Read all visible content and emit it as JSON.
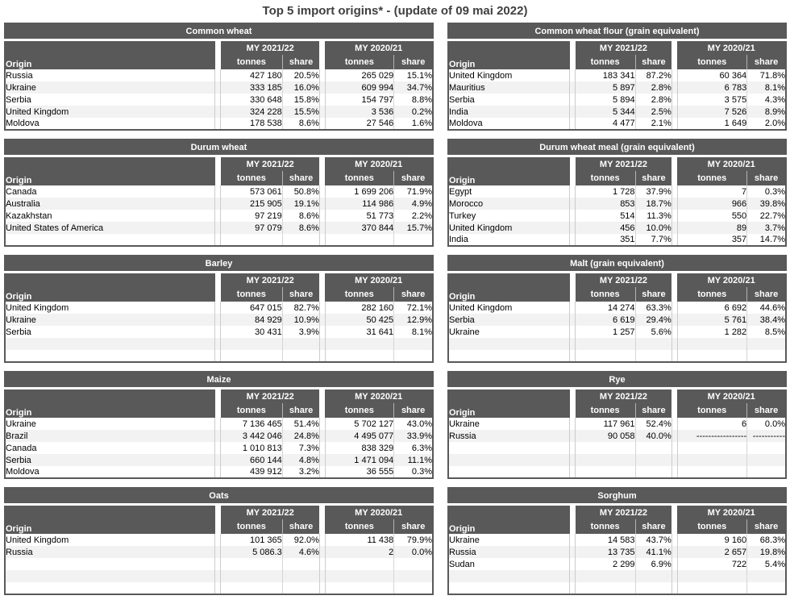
{
  "title": "Top 5 import origins* - (update of 09 mai 2022)",
  "header_labels": {
    "origin": "Origin",
    "my1": "MY 2021/22",
    "my2": "MY 2020/21",
    "tonnes": "tonnes",
    "share": "share"
  },
  "colors": {
    "header_bg": "#595959",
    "stripe": "#f2f2f2",
    "separator_line": "#cccccc",
    "title_text": "#404040"
  },
  "tables": [
    {
      "title": "Common wheat",
      "side": "left",
      "rows": [
        [
          "Russia",
          "427 180",
          "20.5%",
          "265 029",
          "15.1%"
        ],
        [
          "Ukraine",
          "333 185",
          "16.0%",
          "609 994",
          "34.7%"
        ],
        [
          "Serbia",
          "330 648",
          "15.8%",
          "154 797",
          "8.8%"
        ],
        [
          "United Kingdom",
          "324 228",
          "15.5%",
          "3 536",
          "0.2%"
        ],
        [
          "Moldova",
          "178 538",
          "8.6%",
          "27 546",
          "1.6%"
        ]
      ]
    },
    {
      "title": "Common wheat flour (grain equivalent)",
      "side": "right",
      "rows": [
        [
          "United Kingdom",
          "183 341",
          "87.2%",
          "60 364",
          "71.8%"
        ],
        [
          "Mauritius",
          "5 897",
          "2.8%",
          "6 783",
          "8.1%"
        ],
        [
          "Serbia",
          "5 894",
          "2.8%",
          "3 575",
          "4.3%"
        ],
        [
          "India",
          "5 344",
          "2.5%",
          "7 526",
          "8.9%"
        ],
        [
          "Moldova",
          "4 477",
          "2.1%",
          "1 649",
          "2.0%"
        ]
      ]
    },
    {
      "title": "Durum wheat",
      "side": "left",
      "rows": [
        [
          "Canada",
          "573 061",
          "50.8%",
          "1 699 206",
          "71.9%"
        ],
        [
          "Australia",
          "215 905",
          "19.1%",
          "114 986",
          "4.9%"
        ],
        [
          "Kazakhstan",
          "97 219",
          "8.6%",
          "51 773",
          "2.2%"
        ],
        [
          "United States of America",
          "97 079",
          "8.6%",
          "370 844",
          "15.7%"
        ]
      ]
    },
    {
      "title": "Durum wheat meal (grain equivalent)",
      "side": "right",
      "rows": [
        [
          "Egypt",
          "1 728",
          "37.9%",
          "7",
          "0.3%"
        ],
        [
          "Morocco",
          "853",
          "18.7%",
          "966",
          "39.8%"
        ],
        [
          "Turkey",
          "514",
          "11.3%",
          "550",
          "22.7%"
        ],
        [
          "United Kingdom",
          "456",
          "10.0%",
          "89",
          "3.7%"
        ],
        [
          "India",
          "351",
          "7.7%",
          "357",
          "14.7%"
        ]
      ]
    },
    {
      "title": "Barley",
      "side": "left",
      "rows": [
        [
          "United Kingdom",
          "647 015",
          "82.7%",
          "282 160",
          "72.1%"
        ],
        [
          "Ukraine",
          "84 929",
          "10.9%",
          "50 425",
          "12.9%"
        ],
        [
          "Serbia",
          "30 431",
          "3.9%",
          "31 641",
          "8.1%"
        ]
      ]
    },
    {
      "title": "Malt (grain equivalent)",
      "side": "right",
      "rows": [
        [
          "United Kingdom",
          "14 274",
          "63.3%",
          "6 692",
          "44.6%"
        ],
        [
          "Serbia",
          "6 619",
          "29.4%",
          "5 761",
          "38.4%"
        ],
        [
          "Ukraine",
          "1 257",
          "5.6%",
          "1 282",
          "8.5%"
        ]
      ]
    },
    {
      "title": "Maize",
      "side": "left",
      "rows": [
        [
          "Ukraine",
          "7 136 465",
          "51.4%",
          "5 702 127",
          "43.0%"
        ],
        [
          "Brazil",
          "3 442 046",
          "24.8%",
          "4 495 077",
          "33.9%"
        ],
        [
          "Canada",
          "1 010 813",
          "7.3%",
          "838 329",
          "6.3%"
        ],
        [
          "Serbia",
          "660 144",
          "4.8%",
          "1 471 094",
          "11.1%"
        ],
        [
          "Moldova",
          "439 912",
          "3.2%",
          "36 555",
          "0.3%"
        ]
      ]
    },
    {
      "title": "Rye",
      "side": "right",
      "rows": [
        [
          "Ukraine",
          "117 961",
          "52.4%",
          "6",
          "0.0%"
        ],
        [
          "Russia",
          "90 058",
          "40.0%",
          "-----------------",
          "-----------"
        ]
      ]
    },
    {
      "title": "Oats",
      "side": "left",
      "rows": [
        [
          "United Kingdom",
          "101 365",
          "92.0%",
          "11 438",
          "79.9%"
        ],
        [
          "Russia",
          "5 086.3",
          "4.6%",
          "2",
          "0.0%"
        ]
      ]
    },
    {
      "title": "Sorghum",
      "side": "right",
      "rows": [
        [
          "Ukraine",
          "14 583",
          "43.7%",
          "9 160",
          "68.3%"
        ],
        [
          "Russia",
          "13 735",
          "41.1%",
          "2 657",
          "19.8%"
        ],
        [
          "Sudan",
          "2 299",
          "6.9%",
          "722",
          "5.4%"
        ]
      ]
    }
  ]
}
